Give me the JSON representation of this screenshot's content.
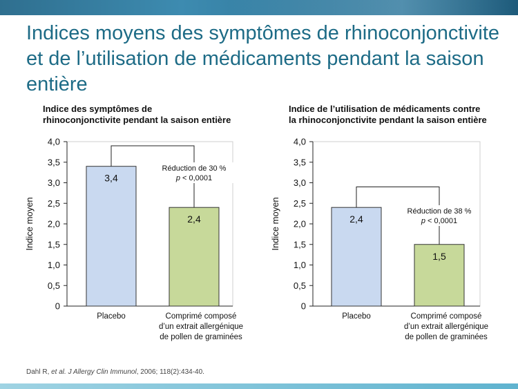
{
  "slide": {
    "title": "Indices moyens des symptômes de rhinoconjonctivite et de l’utilisation de médicaments pendant la saison entière",
    "reference": {
      "authors": "Dahl R, ",
      "etal": "et al.",
      "journal": "J Allergy Clin Immunol",
      "details": ", 2006; 118(2):434-40."
    },
    "colors": {
      "title": "#1d6b86",
      "placebo_bar": "#c9d9f0",
      "treatment_bar": "#c7d99a",
      "bar_border": "#333333"
    }
  },
  "chart_data": [
    {
      "type": "bar",
      "title_lines": [
        "Indice des symptômes de",
        "rhinoconjonctivite pendant la saison entière"
      ],
      "ylabel": "Indice moyen",
      "ylim": [
        0,
        4
      ],
      "yticks": [
        "0",
        "0,5",
        "1,0",
        "1,5",
        "2,0",
        "2,5",
        "3,0",
        "3,5",
        "4,0"
      ],
      "categories": [
        [
          "Placebo"
        ],
        [
          "Comprimé composé",
          "d’un extrait allergénique",
          "de pollen de graminées"
        ]
      ],
      "values": [
        3.4,
        2.4
      ],
      "value_labels": [
        "3,4",
        "2,4"
      ],
      "annotation": {
        "reduction": "Réduction de 30 %",
        "p_italic": "p",
        "p_rest": " < 0,0001",
        "bracket_top": 3.9
      }
    },
    {
      "type": "bar",
      "title_lines": [
        "Indice de l’utilisation de médicaments contre",
        "la rhinoconjonctivite pendant la saison entière"
      ],
      "ylabel": "Indice moyen",
      "ylim": [
        0,
        4
      ],
      "yticks": [
        "0",
        "0,5",
        "1,0",
        "1,5",
        "2,0",
        "2,5",
        "3,0",
        "3,5",
        "4,0"
      ],
      "categories": [
        [
          "Placebo"
        ],
        [
          "Comprimé composé",
          "d’un extrait allergénique",
          "de pollen de graminées"
        ]
      ],
      "values": [
        2.4,
        1.5
      ],
      "value_labels": [
        "2,4",
        "1,5"
      ],
      "annotation": {
        "reduction": "Réduction de 38 %",
        "p_italic": "p",
        "p_rest": " < 0,0001",
        "bracket_top": 2.9
      }
    }
  ]
}
